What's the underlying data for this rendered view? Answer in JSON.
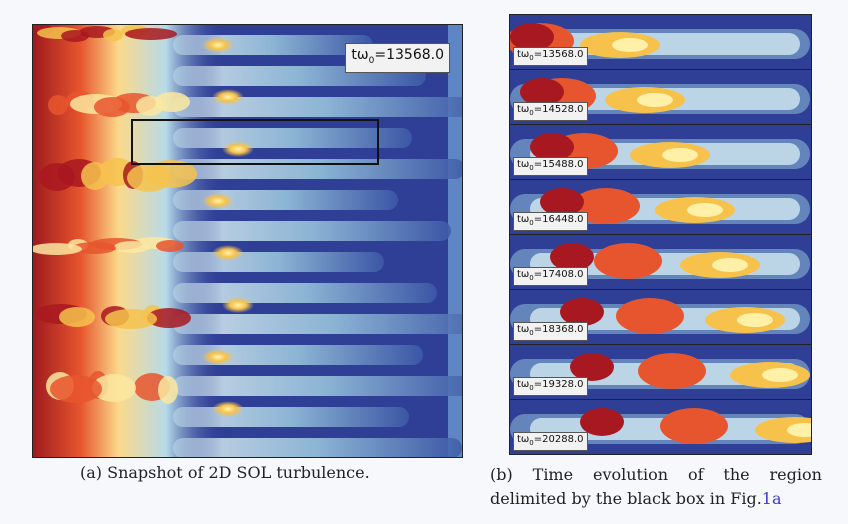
{
  "panel_a": {
    "time_label_prefix": "tω",
    "time_label_sub": "0",
    "time_label_value": "=13568.0"
  },
  "panel_b": {
    "frames": [
      {
        "prefix": "tω",
        "sub": "0",
        "value": "=13568.0"
      },
      {
        "prefix": "tω",
        "sub": "0",
        "value": "=14528.0"
      },
      {
        "prefix": "tω",
        "sub": "0",
        "value": "=15488.0"
      },
      {
        "prefix": "tω",
        "sub": "0",
        "value": "=16448.0"
      },
      {
        "prefix": "tω",
        "sub": "0",
        "value": "=17408.0"
      },
      {
        "prefix": "tω",
        "sub": "0",
        "value": "=18368.0"
      },
      {
        "prefix": "tω",
        "sub": "0",
        "value": "=19328.0"
      },
      {
        "prefix": "tω",
        "sub": "0",
        "value": "=20288.0"
      }
    ]
  },
  "captions": {
    "a": "(a)  Snapshot of 2D SOL turbulence.",
    "b_label": "(b)",
    "b_words": [
      "Time",
      "evolution",
      "of",
      "the",
      "region"
    ],
    "b_line2_text": "delimited by the black box in Fig.",
    "b_ref": "1a"
  },
  "colors": {
    "background": "#2f3f96",
    "low": "#4a73b8",
    "mid_low": "#cfe6ef",
    "mid": "#f6e89a",
    "high": "#f08a3a",
    "max": "#b81820"
  }
}
